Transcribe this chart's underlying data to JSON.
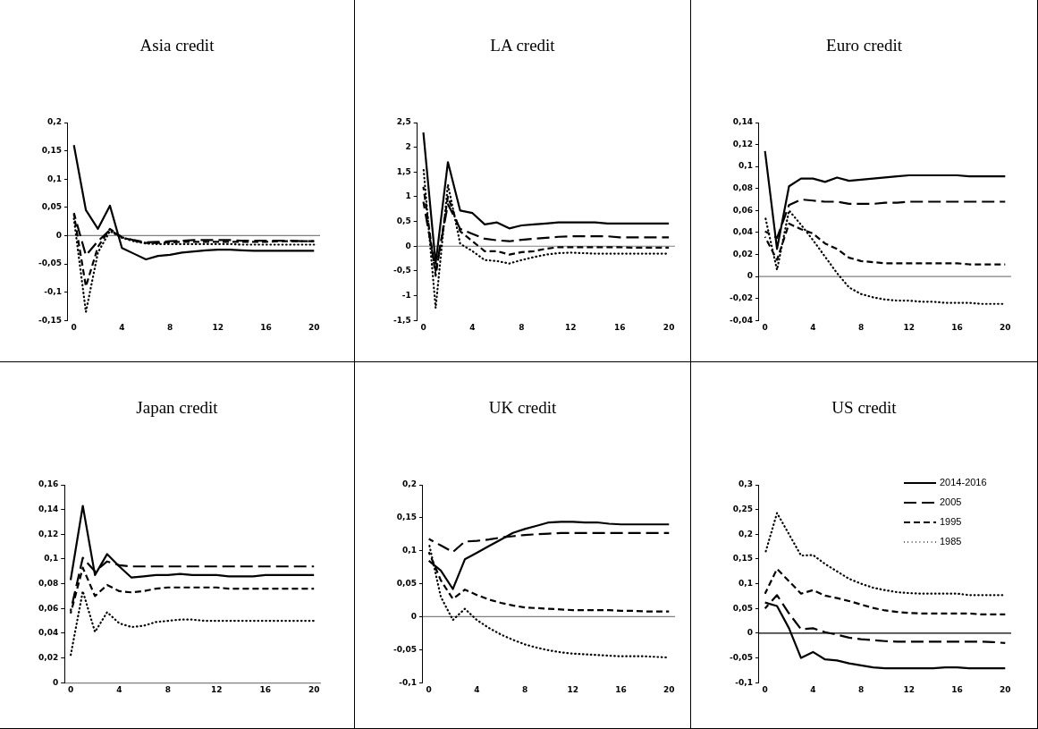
{
  "chart_data": [
    {
      "type": "line",
      "title": "Asia credit",
      "x": [
        0,
        1,
        2,
        3,
        4,
        5,
        6,
        7,
        8,
        9,
        10,
        11,
        12,
        13,
        14,
        15,
        16,
        17,
        18,
        19,
        20
      ],
      "xlim": [
        -0.5,
        20.5
      ],
      "xticks": [
        0,
        4,
        8,
        12,
        16,
        20
      ],
      "ylim": [
        -0.15,
        0.2
      ],
      "yticks": [
        {
          "value": -0.15,
          "label": "-0,15"
        },
        {
          "value": -0.1,
          "label": "-0,1"
        },
        {
          "value": -0.05,
          "label": "-0,05"
        },
        0,
        {
          "value": 0.05,
          "label": "0,05"
        },
        {
          "value": 0.1,
          "label": "0,1"
        },
        {
          "value": 0.15,
          "label": "0,15"
        },
        {
          "value": 0.2,
          "label": "0,2"
        }
      ],
      "grid": false,
      "legend": false,
      "marker": "none",
      "ref_lines": [
        {
          "axis": "y",
          "value": 0,
          "color": "#808080"
        }
      ],
      "series": [
        {
          "color": "#000000",
          "line_style": "solid",
          "values": [
            0.16,
            0.045,
            0.012,
            0.053,
            -0.022,
            -0.032,
            -0.042,
            -0.036,
            -0.034,
            -0.03,
            -0.028,
            -0.026,
            -0.025,
            -0.025,
            -0.026,
            -0.027,
            -0.027,
            -0.027,
            -0.027,
            -0.027,
            -0.027
          ]
        },
        {
          "color": "#000000",
          "line_style": "dashed",
          "values": [
            0.04,
            -0.035,
            -0.01,
            0.01,
            -0.003,
            -0.008,
            -0.012,
            -0.011,
            -0.01,
            -0.009,
            -0.008,
            -0.008,
            -0.008,
            -0.008,
            -0.009,
            -0.009,
            -0.009,
            -0.009,
            -0.009,
            -0.01,
            -0.01
          ]
        },
        {
          "color": "#000000",
          "line_style": "dashed",
          "values": [
            0.038,
            -0.09,
            -0.02,
            0.012,
            -0.003,
            -0.009,
            -0.013,
            -0.013,
            -0.012,
            -0.011,
            -0.011,
            -0.011,
            -0.011,
            -0.011,
            -0.011,
            -0.011,
            -0.011,
            -0.01,
            -0.01,
            -0.01,
            -0.01
          ]
        },
        {
          "color": "#000000",
          "line_style": "dotted",
          "values": [
            0.03,
            -0.135,
            -0.03,
            0.008,
            -0.004,
            -0.01,
            -0.014,
            -0.015,
            -0.015,
            -0.015,
            -0.015,
            -0.015,
            -0.015,
            -0.015,
            -0.016,
            -0.016,
            -0.016,
            -0.016,
            -0.016,
            -0.016,
            -0.016
          ]
        }
      ]
    },
    {
      "type": "line",
      "title": "LA credit",
      "x": [
        0,
        1,
        2,
        3,
        4,
        5,
        6,
        7,
        8,
        9,
        10,
        11,
        12,
        13,
        14,
        15,
        16,
        17,
        18,
        19,
        20
      ],
      "xlim": [
        -0.5,
        20.5
      ],
      "xticks": [
        0,
        4,
        8,
        12,
        16,
        20
      ],
      "ylim": [
        -1.5,
        2.5
      ],
      "yticks": [
        {
          "value": -1.5,
          "label": "-1,5"
        },
        -1,
        {
          "value": -0.5,
          "label": "-0,5"
        },
        0,
        {
          "value": 0.5,
          "label": "0,5"
        },
        1,
        {
          "value": 1.5,
          "label": "1,5"
        },
        2,
        {
          "value": 2.5,
          "label": "2,5"
        }
      ],
      "grid": false,
      "legend": false,
      "marker": "none",
      "ref_lines": [
        {
          "axis": "y",
          "value": 0,
          "color": "#808080"
        }
      ],
      "series": [
        {
          "color": "#000000",
          "line_style": "solid",
          "values": [
            2.3,
            -0.35,
            1.7,
            0.72,
            0.67,
            0.44,
            0.48,
            0.36,
            0.42,
            0.44,
            0.46,
            0.48,
            0.48,
            0.48,
            0.48,
            0.46,
            0.46,
            0.46,
            0.46,
            0.46,
            0.46
          ]
        },
        {
          "color": "#000000",
          "line_style": "dashed",
          "values": [
            0.9,
            -0.5,
            0.85,
            0.35,
            0.25,
            0.15,
            0.12,
            0.1,
            0.13,
            0.15,
            0.17,
            0.19,
            0.2,
            0.2,
            0.2,
            0.2,
            0.18,
            0.18,
            0.18,
            0.18,
            0.18
          ]
        },
        {
          "color": "#000000",
          "line_style": "dashed",
          "values": [
            1.2,
            -0.6,
            1.0,
            0.3,
            0.1,
            -0.1,
            -0.1,
            -0.17,
            -0.12,
            -0.1,
            -0.05,
            -0.02,
            -0.02,
            -0.02,
            -0.02,
            -0.02,
            -0.02,
            -0.03,
            -0.03,
            -0.03,
            -0.03
          ]
        },
        {
          "color": "#000000",
          "line_style": "dotted",
          "values": [
            1.6,
            -1.25,
            1.25,
            0.05,
            -0.1,
            -0.28,
            -0.3,
            -0.35,
            -0.28,
            -0.22,
            -0.17,
            -0.14,
            -0.13,
            -0.14,
            -0.15,
            -0.15,
            -0.15,
            -0.15,
            -0.15,
            -0.15,
            -0.15
          ]
        }
      ]
    },
    {
      "type": "line",
      "title": "Euro credit",
      "x": [
        0,
        1,
        2,
        3,
        4,
        5,
        6,
        7,
        8,
        9,
        10,
        11,
        12,
        13,
        14,
        15,
        16,
        17,
        18,
        19,
        20
      ],
      "xlim": [
        -0.5,
        20.5
      ],
      "xticks": [
        0,
        4,
        8,
        12,
        16,
        20
      ],
      "ylim": [
        -0.04,
        0.14
      ],
      "yticks": [
        {
          "value": -0.04,
          "label": "-0,04"
        },
        {
          "value": -0.02,
          "label": "-0,02"
        },
        0,
        {
          "value": 0.02,
          "label": "0,02"
        },
        {
          "value": 0.04,
          "label": "0,04"
        },
        {
          "value": 0.06,
          "label": "0,06"
        },
        {
          "value": 0.08,
          "label": "0,08"
        },
        {
          "value": 0.1,
          "label": "0,1"
        },
        {
          "value": 0.12,
          "label": "0,12"
        },
        {
          "value": 0.14,
          "label": "0,14"
        }
      ],
      "grid": false,
      "legend": false,
      "marker": "none",
      "ref_lines": [
        {
          "axis": "y",
          "value": 0,
          "color": "#808080"
        }
      ],
      "series": [
        {
          "color": "#000000",
          "line_style": "solid",
          "values": [
            0.114,
            0.025,
            0.082,
            0.089,
            0.089,
            0.086,
            0.09,
            0.087,
            0.088,
            0.089,
            0.09,
            0.091,
            0.092,
            0.092,
            0.092,
            0.092,
            0.092,
            0.091,
            0.091,
            0.091,
            0.091
          ]
        },
        {
          "color": "#000000",
          "line_style": "dashed",
          "values": [
            0.041,
            0.035,
            0.065,
            0.07,
            0.069,
            0.068,
            0.068,
            0.066,
            0.066,
            0.066,
            0.067,
            0.067,
            0.068,
            0.068,
            0.068,
            0.068,
            0.068,
            0.068,
            0.068,
            0.068,
            0.068
          ]
        },
        {
          "color": "#000000",
          "line_style": "dashed",
          "values": [
            0.036,
            0.015,
            0.048,
            0.043,
            0.039,
            0.03,
            0.025,
            0.017,
            0.014,
            0.013,
            0.012,
            0.012,
            0.012,
            0.012,
            0.012,
            0.012,
            0.012,
            0.011,
            0.011,
            0.011,
            0.011
          ]
        },
        {
          "color": "#000000",
          "line_style": "dotted",
          "values": [
            0.055,
            0.006,
            0.06,
            0.047,
            0.033,
            0.018,
            0.003,
            -0.01,
            -0.016,
            -0.019,
            -0.021,
            -0.022,
            -0.022,
            -0.023,
            -0.023,
            -0.024,
            -0.024,
            -0.024,
            -0.025,
            -0.025,
            -0.025
          ]
        }
      ]
    },
    {
      "type": "line",
      "title": "Japan credit",
      "x": [
        0,
        1,
        2,
        3,
        4,
        5,
        6,
        7,
        8,
        9,
        10,
        11,
        12,
        13,
        14,
        15,
        16,
        17,
        18,
        19,
        20
      ],
      "xlim": [
        -0.5,
        20.5
      ],
      "xticks": [
        0,
        4,
        8,
        12,
        16,
        20
      ],
      "ylim": [
        0,
        0.16
      ],
      "yticks": [
        0,
        {
          "value": 0.02,
          "label": "0,02"
        },
        {
          "value": 0.04,
          "label": "0,04"
        },
        {
          "value": 0.06,
          "label": "0,06"
        },
        {
          "value": 0.08,
          "label": "0,08"
        },
        {
          "value": 0.1,
          "label": "0,1"
        },
        {
          "value": 0.12,
          "label": "0,12"
        },
        {
          "value": 0.14,
          "label": "0,14"
        },
        {
          "value": 0.16,
          "label": "0,16"
        }
      ],
      "grid": false,
      "legend": false,
      "marker": "none",
      "series": [
        {
          "color": "#000000",
          "line_style": "solid",
          "values": [
            0.083,
            0.143,
            0.087,
            0.104,
            0.094,
            0.085,
            0.086,
            0.087,
            0.087,
            0.088,
            0.087,
            0.087,
            0.087,
            0.086,
            0.086,
            0.086,
            0.087,
            0.087,
            0.087,
            0.087,
            0.087
          ]
        },
        {
          "color": "#000000",
          "line_style": "dashed",
          "values": [
            0.058,
            0.101,
            0.09,
            0.098,
            0.095,
            0.094,
            0.094,
            0.094,
            0.094,
            0.094,
            0.094,
            0.094,
            0.094,
            0.094,
            0.094,
            0.094,
            0.094,
            0.094,
            0.094,
            0.094,
            0.094
          ]
        },
        {
          "color": "#000000",
          "line_style": "dashed",
          "values": [
            0.056,
            0.093,
            0.07,
            0.079,
            0.074,
            0.073,
            0.074,
            0.076,
            0.077,
            0.077,
            0.077,
            0.077,
            0.077,
            0.076,
            0.076,
            0.076,
            0.076,
            0.076,
            0.076,
            0.076,
            0.076
          ]
        },
        {
          "color": "#000000",
          "line_style": "dotted",
          "values": [
            0.022,
            0.074,
            0.041,
            0.057,
            0.048,
            0.045,
            0.046,
            0.049,
            0.05,
            0.051,
            0.051,
            0.05,
            0.05,
            0.05,
            0.05,
            0.05,
            0.05,
            0.05,
            0.05,
            0.05,
            0.05
          ]
        }
      ]
    },
    {
      "type": "line",
      "title": "UK credit",
      "x": [
        0,
        1,
        2,
        3,
        4,
        5,
        6,
        7,
        8,
        9,
        10,
        11,
        12,
        13,
        14,
        15,
        16,
        17,
        18,
        19,
        20
      ],
      "xlim": [
        -0.5,
        20.5
      ],
      "xticks": [
        0,
        4,
        8,
        12,
        16,
        20
      ],
      "ylim": [
        -0.1,
        0.2
      ],
      "yticks": [
        {
          "value": -0.1,
          "label": "-0,1"
        },
        {
          "value": -0.05,
          "label": "-0,05"
        },
        0,
        {
          "value": 0.05,
          "label": "0,05"
        },
        {
          "value": 0.1,
          "label": "0,1"
        },
        {
          "value": 0.15,
          "label": "0,15"
        },
        {
          "value": 0.2,
          "label": "0,2"
        }
      ],
      "grid": false,
      "legend": false,
      "marker": "none",
      "ref_lines": [
        {
          "axis": "y",
          "value": 0,
          "color": "#808080"
        }
      ],
      "series": [
        {
          "color": "#000000",
          "line_style": "solid",
          "values": [
            0.085,
            0.07,
            0.042,
            0.087,
            0.097,
            0.107,
            0.117,
            0.127,
            0.133,
            0.138,
            0.143,
            0.144,
            0.144,
            0.143,
            0.143,
            0.141,
            0.14,
            0.14,
            0.14,
            0.14,
            0.14
          ]
        },
        {
          "color": "#000000",
          "line_style": "dashed",
          "values": [
            0.118,
            0.108,
            0.098,
            0.114,
            0.115,
            0.117,
            0.12,
            0.122,
            0.124,
            0.125,
            0.126,
            0.127,
            0.127,
            0.127,
            0.127,
            0.127,
            0.127,
            0.127,
            0.127,
            0.127,
            0.127
          ]
        },
        {
          "color": "#000000",
          "line_style": "dashed",
          "values": [
            0.098,
            0.055,
            0.027,
            0.041,
            0.033,
            0.026,
            0.021,
            0.017,
            0.014,
            0.013,
            0.012,
            0.011,
            0.01,
            0.01,
            0.01,
            0.01,
            0.009,
            0.009,
            0.008,
            0.008,
            0.008
          ]
        },
        {
          "color": "#000000",
          "line_style": "dotted",
          "values": [
            0.112,
            0.03,
            -0.005,
            0.012,
            -0.005,
            -0.017,
            -0.027,
            -0.035,
            -0.042,
            -0.047,
            -0.051,
            -0.054,
            -0.056,
            -0.057,
            -0.058,
            -0.059,
            -0.06,
            -0.06,
            -0.06,
            -0.061,
            -0.062
          ]
        }
      ]
    },
    {
      "type": "line",
      "title": "US credit",
      "x": [
        0,
        1,
        2,
        3,
        4,
        5,
        6,
        7,
        8,
        9,
        10,
        11,
        12,
        13,
        14,
        15,
        16,
        17,
        18,
        19,
        20
      ],
      "xlim": [
        -0.5,
        20.5
      ],
      "xticks": [
        0,
        4,
        8,
        12,
        16,
        20
      ],
      "ylim": [
        -0.1,
        0.3
      ],
      "yticks": [
        {
          "value": -0.1,
          "label": "-0,1"
        },
        {
          "value": -0.05,
          "label": "-0,05"
        },
        0,
        {
          "value": 0.05,
          "label": "0,05"
        },
        {
          "value": 0.1,
          "label": "0,1"
        },
        {
          "value": 0.15,
          "label": "0,15"
        },
        {
          "value": 0.2,
          "label": "0,2"
        },
        {
          "value": 0.25,
          "label": "0,25"
        },
        {
          "value": 0.3,
          "label": "0,3"
        }
      ],
      "grid": false,
      "legend": "top right",
      "marker": "none",
      "ref_lines": [
        {
          "axis": "y",
          "value": 0,
          "color": "#000000"
        }
      ],
      "series": [
        {
          "name": "2014-2016",
          "color": "#000000",
          "line_style": "solid",
          "values": [
            0.062,
            0.055,
            0.01,
            -0.05,
            -0.038,
            -0.053,
            -0.055,
            -0.061,
            -0.065,
            -0.069,
            -0.071,
            -0.071,
            -0.071,
            -0.071,
            -0.071,
            -0.069,
            -0.069,
            -0.071,
            -0.071,
            -0.071,
            -0.071
          ]
        },
        {
          "name": "2005",
          "color": "#000000",
          "line_style": "dashed",
          "values": [
            0.05,
            0.077,
            0.04,
            0.008,
            0.01,
            0.002,
            -0.003,
            -0.009,
            -0.012,
            -0.014,
            -0.016,
            -0.017,
            -0.017,
            -0.017,
            -0.017,
            -0.017,
            -0.017,
            -0.017,
            -0.017,
            -0.018,
            -0.02
          ]
        },
        {
          "name": "1995",
          "color": "#000000",
          "line_style": "dashed",
          "values": [
            0.08,
            0.13,
            0.105,
            0.08,
            0.087,
            0.076,
            0.071,
            0.065,
            0.058,
            0.051,
            0.046,
            0.043,
            0.041,
            0.04,
            0.04,
            0.04,
            0.04,
            0.04,
            0.038,
            0.038,
            0.038
          ]
        },
        {
          "name": "1985",
          "color": "#000000",
          "line_style": "dotted",
          "values": [
            0.16,
            0.243,
            0.2,
            0.157,
            0.158,
            0.14,
            0.125,
            0.11,
            0.1,
            0.092,
            0.087,
            0.083,
            0.081,
            0.08,
            0.08,
            0.08,
            0.08,
            0.077,
            0.077,
            0.077,
            0.077
          ]
        }
      ]
    }
  ]
}
